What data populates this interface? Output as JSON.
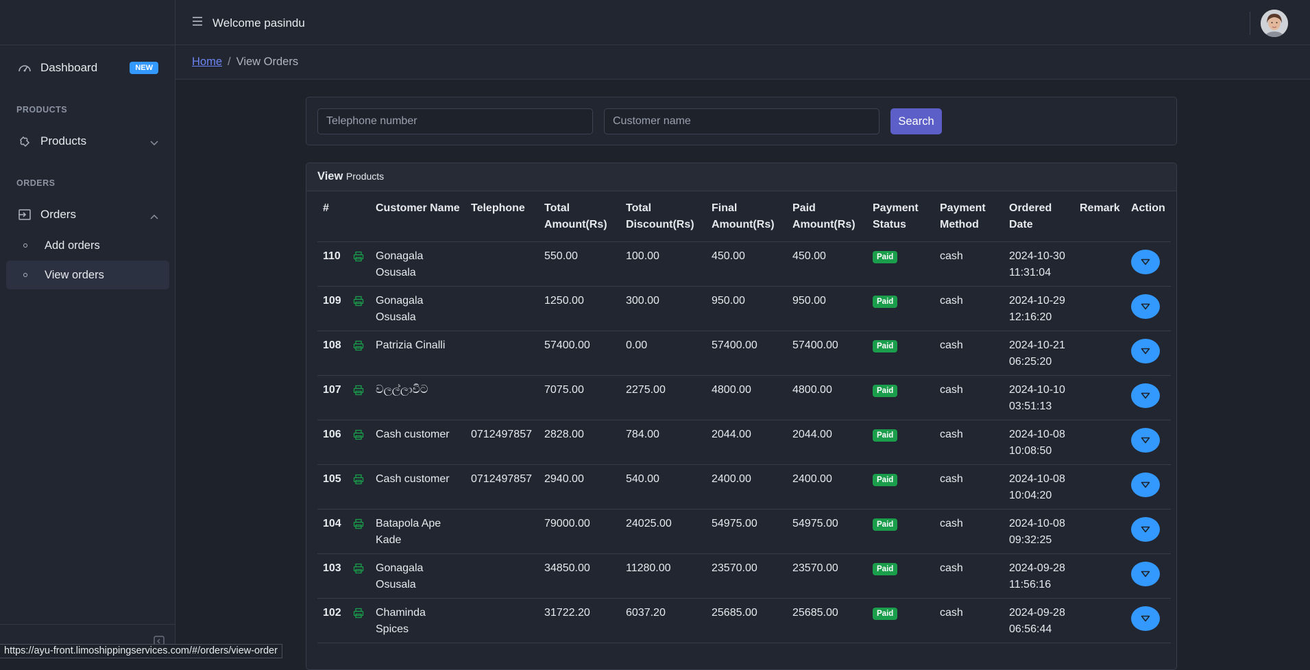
{
  "header": {
    "welcome": "Welcome pasindu"
  },
  "sidebar": {
    "dashboard": {
      "label": "Dashboard",
      "badge": "NEW"
    },
    "products_title": "PRODUCTS",
    "products": {
      "label": "Products"
    },
    "orders_title": "ORDERS",
    "orders": {
      "label": "Orders"
    },
    "add_orders": "Add orders",
    "view_orders": "View orders"
  },
  "breadcrumb": {
    "home": "Home",
    "sep": "/",
    "current": "View Orders"
  },
  "search": {
    "telephone_placeholder": "Telephone number",
    "customer_placeholder": "Customer name",
    "button": "Search"
  },
  "card": {
    "title_bold": "View",
    "title_small": "Products"
  },
  "table": {
    "headers": [
      "#",
      "",
      "Customer Name",
      "Telephone",
      "Total Amount(Rs)",
      "Total Discount(Rs)",
      "Final Amount(Rs)",
      "Paid Amount(Rs)",
      "Payment Status",
      "Payment Method",
      "Ordered Date",
      "Remark",
      "Action"
    ],
    "rows": [
      {
        "id": "110",
        "name": "Gonagala Osusala",
        "tel": "",
        "total": "550.00",
        "discount": "100.00",
        "final": "450.00",
        "paid": "450.00",
        "status": "Paid",
        "method": "cash",
        "date": "2024-10-30 11:31:04",
        "remark": ""
      },
      {
        "id": "109",
        "name": "Gonagala Osusala",
        "tel": "",
        "total": "1250.00",
        "discount": "300.00",
        "final": "950.00",
        "paid": "950.00",
        "status": "Paid",
        "method": "cash",
        "date": "2024-10-29 12:16:20",
        "remark": ""
      },
      {
        "id": "108",
        "name": "Patrizia Cinalli",
        "tel": "",
        "total": "57400.00",
        "discount": "0.00",
        "final": "57400.00",
        "paid": "57400.00",
        "status": "Paid",
        "method": "cash",
        "date": "2024-10-21 06:25:20",
        "remark": ""
      },
      {
        "id": "107",
        "name": "වලල්ලාවිට",
        "tel": "",
        "total": "7075.00",
        "discount": "2275.00",
        "final": "4800.00",
        "paid": "4800.00",
        "status": "Paid",
        "method": "cash",
        "date": "2024-10-10 03:51:13",
        "remark": ""
      },
      {
        "id": "106",
        "name": "Cash customer",
        "tel": "0712497857",
        "total": "2828.00",
        "discount": "784.00",
        "final": "2044.00",
        "paid": "2044.00",
        "status": "Paid",
        "method": "cash",
        "date": "2024-10-08 10:08:50",
        "remark": ""
      },
      {
        "id": "105",
        "name": "Cash customer",
        "tel": "0712497857",
        "total": "2940.00",
        "discount": "540.00",
        "final": "2400.00",
        "paid": "2400.00",
        "status": "Paid",
        "method": "cash",
        "date": "2024-10-08 10:04:20",
        "remark": ""
      },
      {
        "id": "104",
        "name": "Batapola Ape Kade",
        "tel": "",
        "total": "79000.00",
        "discount": "24025.00",
        "final": "54975.00",
        "paid": "54975.00",
        "status": "Paid",
        "method": "cash",
        "date": "2024-10-08 09:32:25",
        "remark": ""
      },
      {
        "id": "103",
        "name": "Gonagala Osusala",
        "tel": "",
        "total": "34850.00",
        "discount": "11280.00",
        "final": "23570.00",
        "paid": "23570.00",
        "status": "Paid",
        "method": "cash",
        "date": "2024-09-28 11:56:16",
        "remark": ""
      },
      {
        "id": "102",
        "name": "Chaminda Spices",
        "tel": "",
        "total": "31722.20",
        "discount": "6037.20",
        "final": "25685.00",
        "paid": "25685.00",
        "status": "Paid",
        "method": "cash",
        "date": "2024-09-28 06:56:44",
        "remark": ""
      }
    ]
  },
  "statusbar": {
    "url": "https://ayu-front.limoshippingservices.com/#/orders/view-order"
  },
  "colors": {
    "accent": "#5b5fc7",
    "action": "#3399ff",
    "paid": "#1b9e4b",
    "print_icon": "#1b9e4b"
  }
}
